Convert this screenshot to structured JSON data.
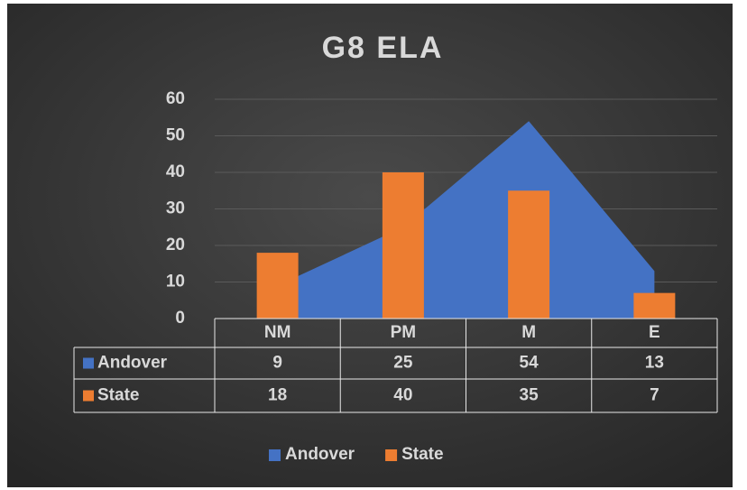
{
  "chart_data": {
    "type": "combo",
    "title": "G8 ELA",
    "categories": [
      "NM",
      "PM",
      "M",
      "E"
    ],
    "series": [
      {
        "name": "Andover",
        "type": "area",
        "color": "#4472c4",
        "values": [
          9,
          25,
          54,
          13
        ]
      },
      {
        "name": "State",
        "type": "bar",
        "color": "#ed7d31",
        "values": [
          18,
          40,
          35,
          7
        ]
      }
    ],
    "ylim": [
      0,
      60
    ],
    "yticks": [
      0,
      10,
      20,
      30,
      40,
      50,
      60
    ],
    "grid": true,
    "legend": "bottom",
    "data_table": true
  }
}
